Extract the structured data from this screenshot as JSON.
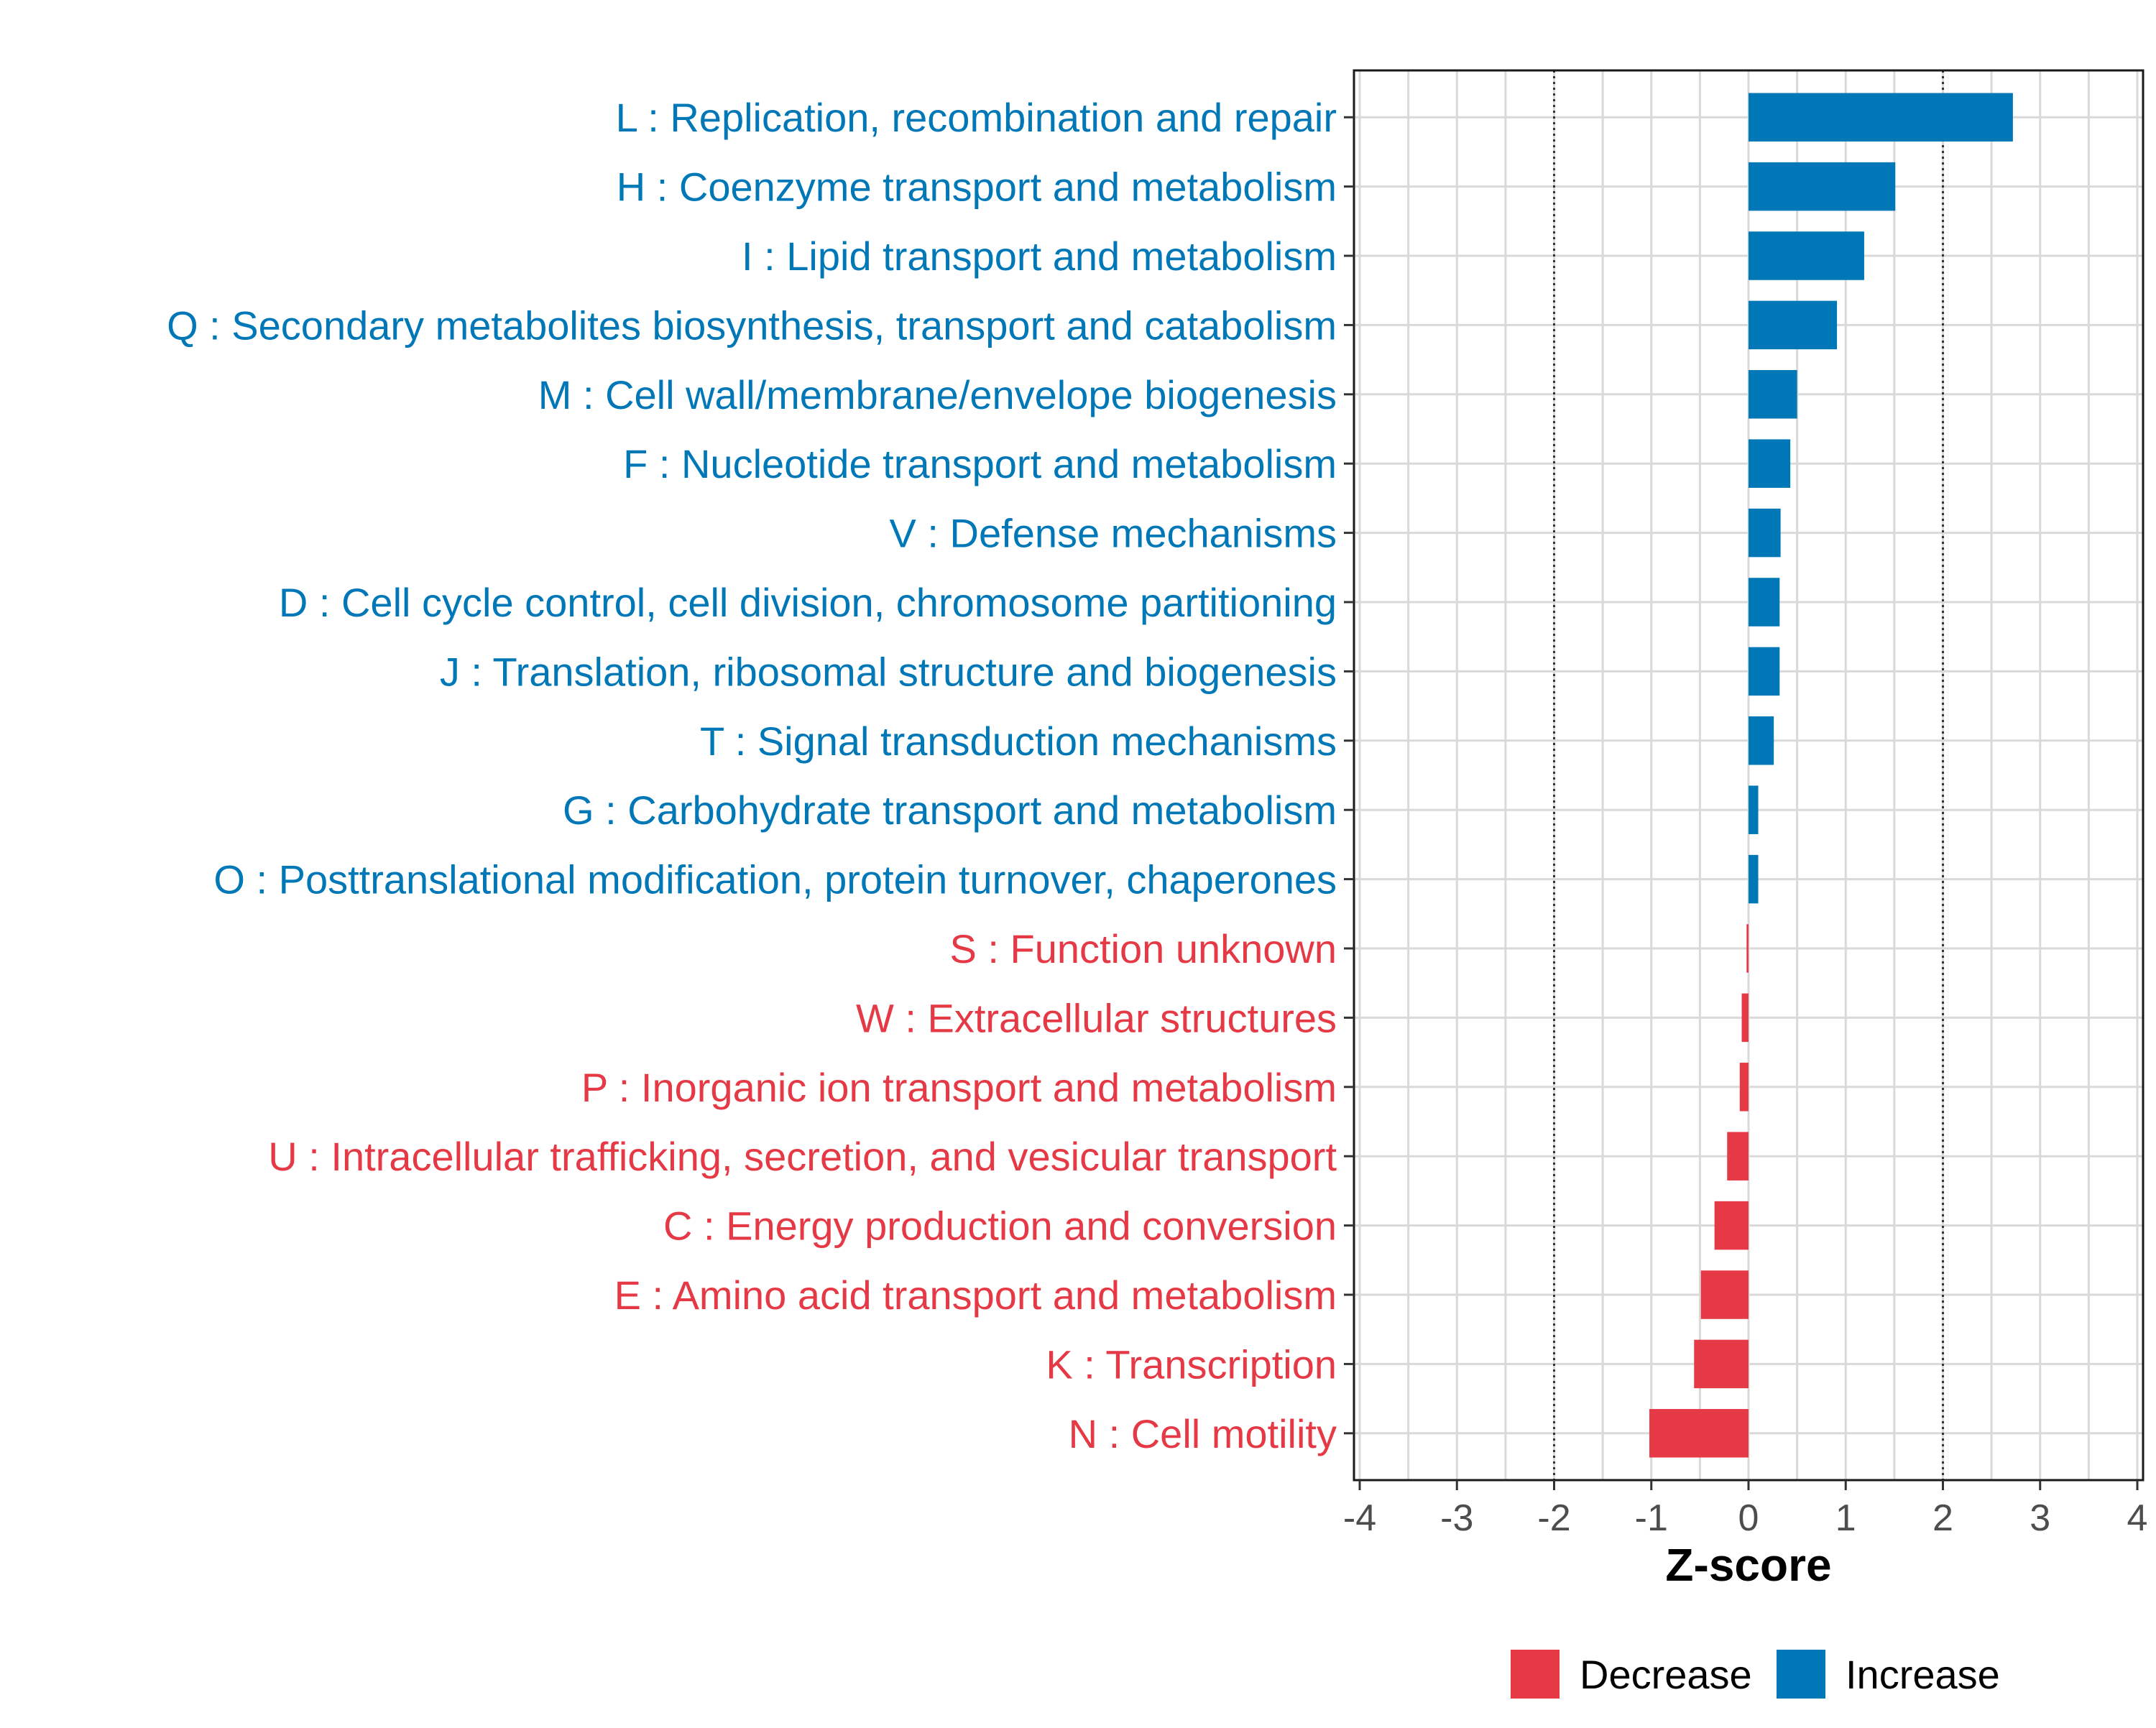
{
  "chart_data": {
    "type": "bar",
    "orientation": "horizontal",
    "title": "",
    "xlabel": "Z-score",
    "ylabel": "",
    "xlim": [
      -4,
      4
    ],
    "xticks": [
      -4,
      -3,
      -2,
      -1,
      0,
      1,
      2,
      3,
      4
    ],
    "reference_lines": [
      -2,
      2
    ],
    "grid": true,
    "legend": {
      "position": "bottom",
      "entries": [
        {
          "label": "Decrease",
          "color": "#e63946"
        },
        {
          "label": "Increase",
          "color": "#0077b6"
        }
      ]
    },
    "categories": [
      "L : Replication, recombination and repair",
      "H : Coenzyme transport and metabolism",
      "I : Lipid transport and metabolism",
      "Q : Secondary metabolites biosynthesis, transport and catabolism",
      "M : Cell wall/membrane/envelope biogenesis",
      "F : Nucleotide transport and metabolism",
      "V : Defense mechanisms",
      "D : Cell cycle control, cell division, chromosome partitioning",
      "J : Translation, ribosomal structure and biogenesis",
      "T : Signal transduction mechanisms",
      "G : Carbohydrate transport and metabolism",
      "O : Posttranslational modification, protein turnover, chaperones",
      "S : Function unknown",
      "W : Extracellular structures",
      "P : Inorganic ion transport and metabolism",
      "U : Intracellular trafficking, secretion, and vesicular transport",
      "C : Energy production and conversion",
      "E : Amino acid transport and metabolism",
      "K : Transcription",
      "N : Cell motility"
    ],
    "values": [
      2.72,
      1.51,
      1.19,
      0.91,
      0.5,
      0.43,
      0.33,
      0.32,
      0.32,
      0.26,
      0.1,
      0.1,
      -0.02,
      -0.07,
      -0.09,
      -0.22,
      -0.35,
      -0.49,
      -0.56,
      -1.02
    ],
    "groups": [
      "Increase",
      "Increase",
      "Increase",
      "Increase",
      "Increase",
      "Increase",
      "Increase",
      "Increase",
      "Increase",
      "Increase",
      "Increase",
      "Increase",
      "Decrease",
      "Decrease",
      "Decrease",
      "Decrease",
      "Decrease",
      "Decrease",
      "Decrease",
      "Decrease"
    ],
    "colors": {
      "Increase": "#0077b6",
      "Decrease": "#e63946"
    }
  }
}
